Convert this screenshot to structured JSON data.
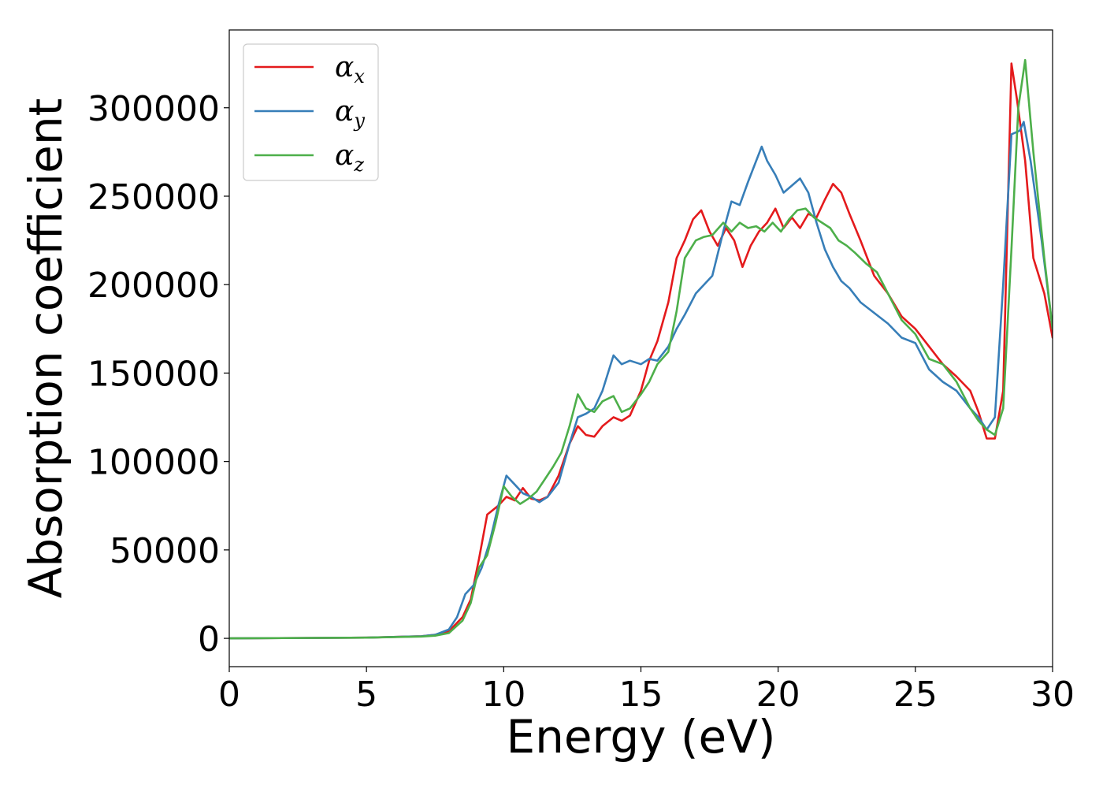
{
  "chart_data": {
    "type": "line",
    "title": "",
    "xlabel": "Energy (eV)",
    "ylabel": "Absorption coefficient",
    "xlim": [
      0,
      30
    ],
    "ylim": [
      -16000,
      344000
    ],
    "xticks": [
      0,
      5,
      10,
      15,
      20,
      25,
      30
    ],
    "xtick_labels": [
      "0",
      "5",
      "10",
      "15",
      "20",
      "25",
      "30"
    ],
    "yticks": [
      0,
      50000,
      100000,
      150000,
      200000,
      250000,
      300000
    ],
    "ytick_labels": [
      "0",
      "50000",
      "100000",
      "150000",
      "200000",
      "250000",
      "300000"
    ],
    "grid": false,
    "legend_position": "top-left",
    "series": [
      {
        "name": "α_x",
        "symbol": "α",
        "subscript": "x",
        "color": "#e41a1c",
        "x": [
          0,
          5,
          7,
          7.5,
          8,
          8.5,
          8.8,
          9.1,
          9.4,
          9.8,
          10.1,
          10.4,
          10.7,
          11,
          11.3,
          11.6,
          12,
          12.4,
          12.7,
          13,
          13.3,
          13.6,
          14,
          14.3,
          14.6,
          15,
          15.3,
          15.6,
          16,
          16.3,
          16.6,
          16.9,
          17.2,
          17.5,
          17.8,
          18.1,
          18.4,
          18.7,
          19,
          19.3,
          19.6,
          19.9,
          20.2,
          20.5,
          20.8,
          21.1,
          21.4,
          21.7,
          22,
          22.3,
          22.6,
          23,
          23.5,
          24,
          24.5,
          25,
          25.5,
          26,
          26.5,
          27,
          27.3,
          27.6,
          27.9,
          28.2,
          28.5,
          28.7,
          29,
          29.3,
          29.7,
          30
        ],
        "y": [
          0,
          400,
          1200,
          2000,
          4000,
          12000,
          22000,
          45000,
          70000,
          75000,
          80000,
          78000,
          85000,
          79000,
          78000,
          80000,
          92000,
          110000,
          120000,
          115000,
          114000,
          120000,
          125000,
          123000,
          126000,
          140000,
          157000,
          168000,
          190000,
          215000,
          225000,
          237000,
          242000,
          230000,
          222000,
          232000,
          225000,
          210000,
          222000,
          230000,
          235000,
          243000,
          232000,
          238000,
          232000,
          240000,
          238000,
          248000,
          257000,
          252000,
          240000,
          225000,
          205000,
          195000,
          182000,
          175000,
          165000,
          155000,
          148000,
          140000,
          128000,
          113000,
          113000,
          140000,
          325000,
          305000,
          270000,
          215000,
          195000,
          170000
        ]
      },
      {
        "name": "α_y",
        "symbol": "α",
        "subscript": "y",
        "color": "#377eb8",
        "x": [
          0,
          5,
          7,
          7.5,
          8,
          8.3,
          8.6,
          8.9,
          9.2,
          9.5,
          9.8,
          10.1,
          10.4,
          10.7,
          11,
          11.3,
          11.6,
          12,
          12.4,
          12.7,
          13,
          13.3,
          13.6,
          14,
          14.3,
          14.6,
          15,
          15.3,
          15.6,
          16,
          16.3,
          16.6,
          17,
          17.3,
          17.6,
          18,
          18.3,
          18.6,
          18.9,
          19.2,
          19.4,
          19.6,
          19.9,
          20.2,
          20.5,
          20.8,
          21.1,
          21.4,
          21.7,
          22,
          22.3,
          22.6,
          23,
          23.5,
          24,
          24.5,
          25,
          25.5,
          26,
          26.5,
          27,
          27.3,
          27.6,
          27.9,
          28.2,
          28.5,
          28.8,
          28.95,
          29.2,
          29.6,
          30
        ],
        "y": [
          0,
          400,
          1200,
          2000,
          5000,
          12000,
          25000,
          30000,
          40000,
          55000,
          75000,
          92000,
          87000,
          82000,
          80000,
          77000,
          80000,
          88000,
          110000,
          125000,
          127000,
          130000,
          140000,
          160000,
          155000,
          157000,
          155000,
          158000,
          157000,
          165000,
          175000,
          183000,
          195000,
          200000,
          205000,
          230000,
          247000,
          245000,
          258000,
          270000,
          278000,
          270000,
          262000,
          252000,
          256000,
          260000,
          252000,
          235000,
          220000,
          210000,
          202000,
          198000,
          190000,
          184000,
          178000,
          170000,
          167000,
          152000,
          145000,
          140000,
          130000,
          125000,
          118000,
          125000,
          200000,
          285000,
          287000,
          292000,
          270000,
          225000,
          175000
        ]
      },
      {
        "name": "α_z",
        "symbol": "α",
        "subscript": "z",
        "color": "#4daf4a",
        "x": [
          0,
          5,
          7,
          7.5,
          8,
          8.5,
          8.8,
          9.1,
          9.4,
          9.7,
          10,
          10.3,
          10.6,
          10.9,
          11.2,
          11.5,
          11.8,
          12.1,
          12.4,
          12.7,
          13,
          13.3,
          13.6,
          14,
          14.3,
          14.6,
          15,
          15.3,
          15.6,
          16,
          16.3,
          16.6,
          17,
          17.3,
          17.6,
          18,
          18.3,
          18.6,
          18.9,
          19.2,
          19.5,
          19.8,
          20.1,
          20.4,
          20.7,
          21,
          21.3,
          21.6,
          21.9,
          22.2,
          22.5,
          22.8,
          23.2,
          23.6,
          24,
          24.5,
          25,
          25.5,
          26,
          26.5,
          27,
          27.3,
          27.6,
          27.9,
          28.2,
          28.5,
          28.75,
          29,
          29.3,
          29.7,
          30
        ],
        "y": [
          0,
          400,
          1000,
          1500,
          3000,
          10000,
          20000,
          40000,
          47000,
          65000,
          86000,
          80000,
          76000,
          79000,
          83000,
          90000,
          97000,
          105000,
          120000,
          138000,
          130000,
          128000,
          134000,
          137000,
          128000,
          130000,
          138000,
          145000,
          155000,
          162000,
          185000,
          215000,
          225000,
          227000,
          228000,
          235000,
          230000,
          235000,
          232000,
          233000,
          230000,
          235000,
          230000,
          237000,
          242000,
          243000,
          238000,
          235000,
          232000,
          225000,
          222000,
          218000,
          212000,
          207000,
          195000,
          180000,
          172000,
          158000,
          155000,
          145000,
          130000,
          123000,
          118000,
          115000,
          130000,
          220000,
          300000,
          327000,
          275000,
          215000,
          175000
        ]
      }
    ]
  }
}
